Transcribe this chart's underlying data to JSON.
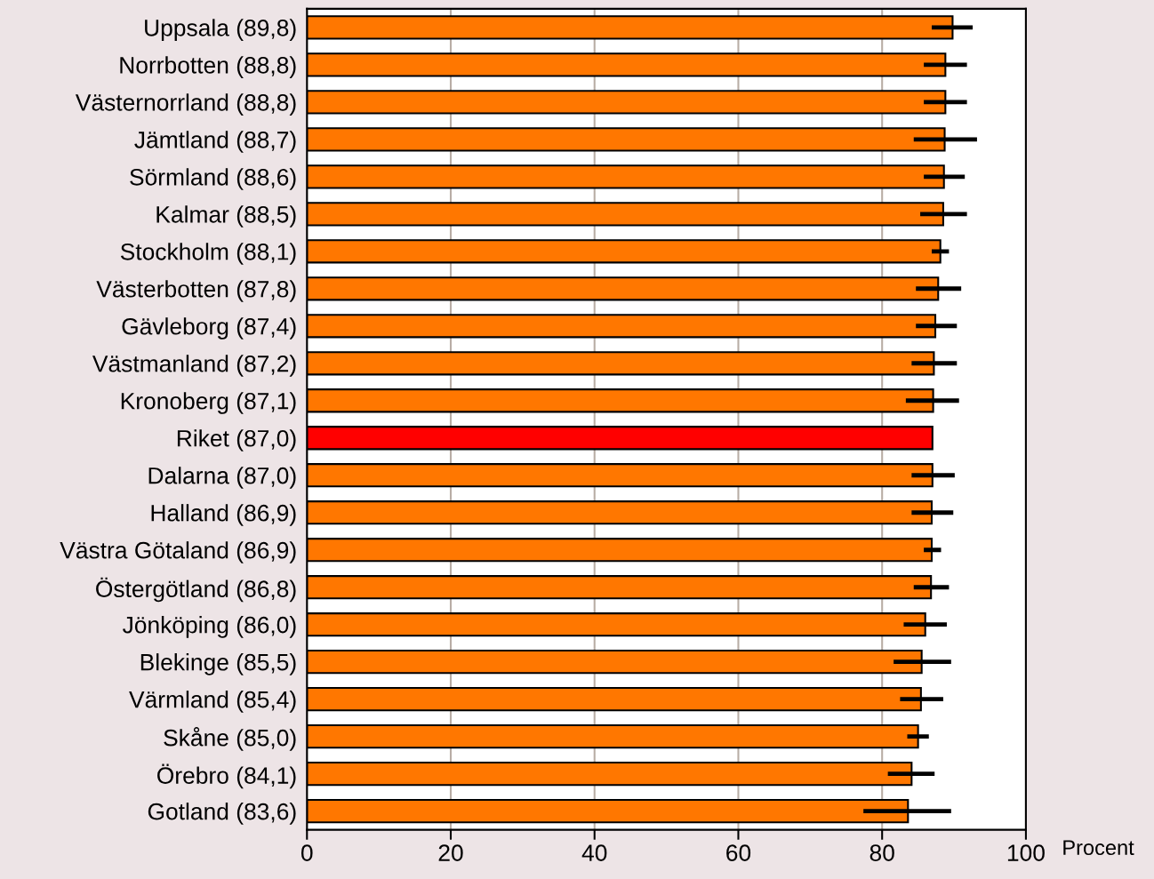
{
  "chart_data": {
    "type": "bar",
    "orientation": "horizontal",
    "xlabel": "Procent",
    "categories": [
      "Uppsala (89,8)",
      "Norrbotten (88,8)",
      "Västernorrland (88,8)",
      "Jämtland (88,7)",
      "Sörmland (88,6)",
      "Kalmar (88,5)",
      "Stockholm (88,1)",
      "Västerbotten (87,8)",
      "Gävleborg (87,4)",
      "Västmanland (87,2)",
      "Kronoberg (87,1)",
      "Riket (87,0)",
      "Dalarna (87,0)",
      "Halland (86,9)",
      "Västra Götaland (86,9)",
      "Östergötland (86,8)",
      "Jönköping (86,0)",
      "Blekinge (85,5)",
      "Värmland (85,4)",
      "Skåne (85,0)",
      "Örebro (84,1)",
      "Gotland (83,6)"
    ],
    "values": [
      89.8,
      88.8,
      88.8,
      88.7,
      88.6,
      88.5,
      88.1,
      87.8,
      87.4,
      87.2,
      87.1,
      87.0,
      87.0,
      86.9,
      86.9,
      86.8,
      86.0,
      85.5,
      85.4,
      85.0,
      84.1,
      83.6
    ],
    "colors": [
      "#ff7700",
      "#ff7700",
      "#ff7700",
      "#ff7700",
      "#ff7700",
      "#ff7700",
      "#ff7700",
      "#ff7700",
      "#ff7700",
      "#ff7700",
      "#ff7700",
      "#ff0000",
      "#ff7700",
      "#ff7700",
      "#ff7700",
      "#ff7700",
      "#ff7700",
      "#ff7700",
      "#ff7700",
      "#ff7700",
      "#ff7700",
      "#ff7700"
    ],
    "errors": [
      [
        86.9,
        92.6
      ],
      [
        85.8,
        91.8
      ],
      [
        85.8,
        91.8
      ],
      [
        84.4,
        93.2
      ],
      [
        85.8,
        91.5
      ],
      [
        85.3,
        91.8
      ],
      [
        86.9,
        89.3
      ],
      [
        84.7,
        91.0
      ],
      [
        84.7,
        90.4
      ],
      [
        84.1,
        90.4
      ],
      [
        83.3,
        90.7
      ],
      null,
      [
        84.1,
        90.1
      ],
      [
        84.1,
        89.9
      ],
      [
        85.8,
        88.2
      ],
      [
        84.4,
        89.3
      ],
      [
        83.0,
        89.0
      ],
      [
        81.6,
        89.6
      ],
      [
        82.5,
        88.5
      ],
      [
        83.5,
        86.5
      ],
      [
        80.8,
        87.3
      ],
      [
        77.4,
        89.6
      ]
    ],
    "xlim": [
      0,
      100
    ],
    "xticks": [
      0,
      20,
      40,
      60,
      80,
      100
    ],
    "grid": "x",
    "legend": false
  }
}
